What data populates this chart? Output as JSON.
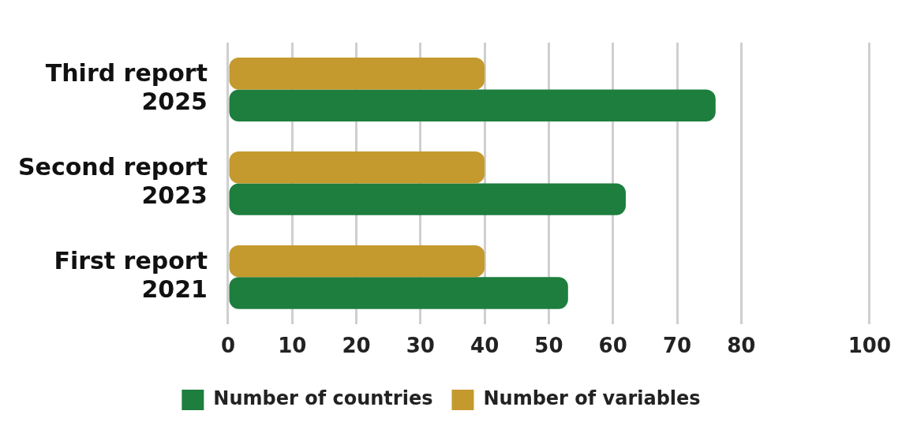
{
  "chart_data": {
    "type": "bar",
    "orientation": "horizontal",
    "categories": [
      "Third report 2025",
      "Second report 2023",
      "First report 2021"
    ],
    "series": [
      {
        "name": "Number of countries",
        "color": "#1e7e3e",
        "values": [
          76,
          62,
          53
        ]
      },
      {
        "name": "Number of variables",
        "color": "#c49a2e",
        "values": [
          40,
          40,
          40
        ]
      }
    ],
    "xlim": [
      0,
      100
    ],
    "xticks": [
      0,
      10,
      20,
      30,
      40,
      50,
      60,
      70,
      80,
      100
    ],
    "grid": "x",
    "legend": "bottom"
  }
}
